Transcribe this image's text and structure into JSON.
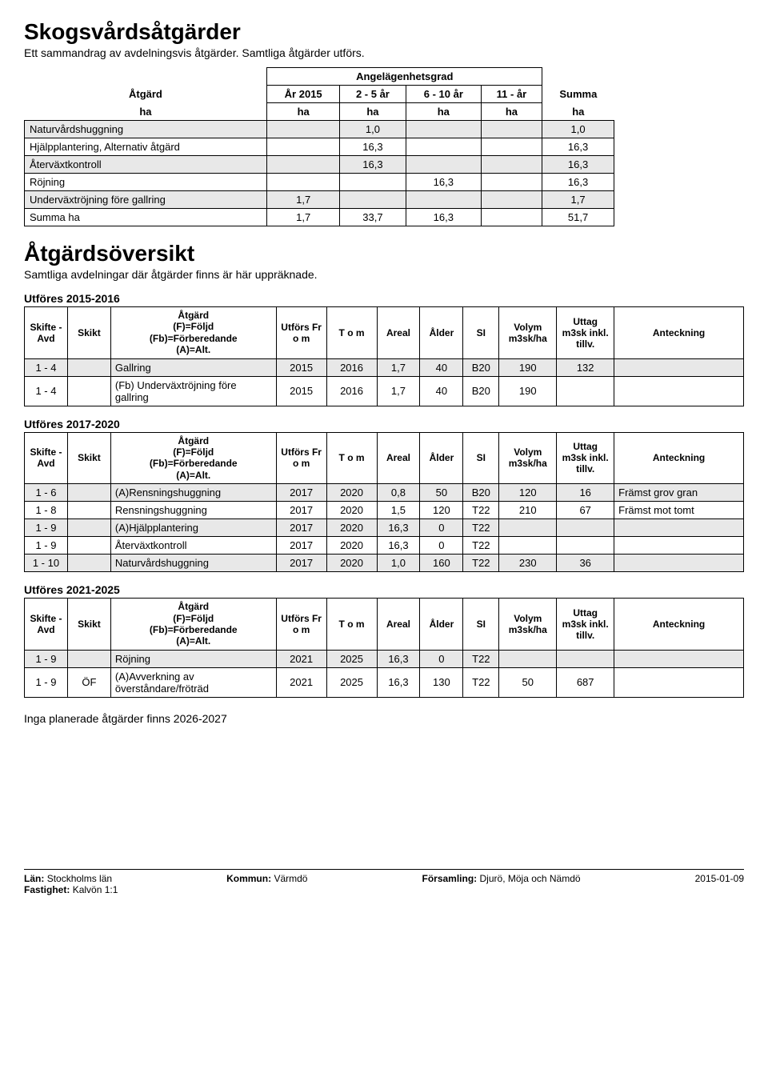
{
  "title1": "Skogsvårdsåtgärder",
  "subtitle1": "Ett sammandrag av avdelningsvis åtgärder. Samtliga åtgärder utförs.",
  "summary": {
    "col_angelagen": "Angelägenhetsgrad",
    "col_atgard": "Åtgärd",
    "col_ar2015": "År 2015",
    "col_25": "2 - 5 år",
    "col_610": "6 - 10 år",
    "col_11": "11 - år",
    "col_summa": "Summa",
    "unit": "ha",
    "rows": [
      {
        "label": "Naturvårdshuggning",
        "v1": "",
        "v2": "1,0",
        "v3": "",
        "v4": "",
        "sum": "1,0",
        "shade": true
      },
      {
        "label": "Hjälpplantering, Alternativ åtgärd",
        "v1": "",
        "v2": "16,3",
        "v3": "",
        "v4": "",
        "sum": "16,3",
        "shade": false
      },
      {
        "label": "Återväxtkontroll",
        "v1": "",
        "v2": "16,3",
        "v3": "",
        "v4": "",
        "sum": "16,3",
        "shade": true
      },
      {
        "label": "Röjning",
        "v1": "",
        "v2": "",
        "v3": "16,3",
        "v4": "",
        "sum": "16,3",
        "shade": false
      },
      {
        "label": "Underväxtröjning före gallring",
        "v1": "1,7",
        "v2": "",
        "v3": "",
        "v4": "",
        "sum": "1,7",
        "shade": true
      },
      {
        "label": "Summa ha",
        "v1": "1,7",
        "v2": "33,7",
        "v3": "16,3",
        "v4": "",
        "sum": "51,7",
        "shade": false
      }
    ]
  },
  "title2": "Åtgärdsöversikt",
  "subtitle2": "Samtliga avdelningar där åtgärder finns är här uppräknade.",
  "detailHeaders": {
    "skifte": "Skifte - Avd",
    "skikt": "Skikt",
    "atgard": "Åtgärd\n(F)=Följd\n(Fb)=Förberedande\n(A)=Alt.",
    "utfors": "Utförs Fr o m",
    "tom": "T o m",
    "areal": "Areal",
    "alder": "Ålder",
    "si": "SI",
    "volym": "Volym m3sk/ha",
    "uttag": "Uttag m3sk inkl. tillv.",
    "anteck": "Anteckning"
  },
  "sections": [
    {
      "label": "Utföres 2015-2016",
      "rows": [
        {
          "shade": true,
          "c": [
            "1 - 4",
            "",
            "Gallring",
            "2015",
            "2016",
            "1,7",
            "40",
            "B20",
            "190",
            "132",
            ""
          ]
        },
        {
          "shade": false,
          "c": [
            "1 - 4",
            "",
            "(Fb) Underväxtröjning före gallring",
            "2015",
            "2016",
            "1,7",
            "40",
            "B20",
            "190",
            "",
            ""
          ]
        }
      ]
    },
    {
      "label": "Utföres 2017-2020",
      "rows": [
        {
          "shade": true,
          "c": [
            "1 - 6",
            "",
            "(A)Rensningshuggning",
            "2017",
            "2020",
            "0,8",
            "50",
            "B20",
            "120",
            "16",
            "Främst grov gran"
          ]
        },
        {
          "shade": false,
          "c": [
            "1 - 8",
            "",
            "Rensningshuggning",
            "2017",
            "2020",
            "1,5",
            "120",
            "T22",
            "210",
            "67",
            "Främst mot tomt"
          ]
        },
        {
          "shade": true,
          "c": [
            "1 - 9",
            "",
            "(A)Hjälpplantering",
            "2017",
            "2020",
            "16,3",
            "0",
            "T22",
            "",
            "",
            ""
          ]
        },
        {
          "shade": false,
          "c": [
            "1 - 9",
            "",
            "Återväxtkontroll",
            "2017",
            "2020",
            "16,3",
            "0",
            "T22",
            "",
            "",
            ""
          ]
        },
        {
          "shade": true,
          "c": [
            "1 - 10",
            "",
            "Naturvårdshuggning",
            "2017",
            "2020",
            "1,0",
            "160",
            "T22",
            "230",
            "36",
            ""
          ]
        }
      ]
    },
    {
      "label": "Utföres 2021-2025",
      "rows": [
        {
          "shade": true,
          "c": [
            "1 - 9",
            "",
            "Röjning",
            "2021",
            "2025",
            "16,3",
            "0",
            "T22",
            "",
            "",
            ""
          ]
        },
        {
          "shade": false,
          "c": [
            "1 - 9",
            "ÖF",
            "(A)Avverkning av överståndare/fröträd",
            "2021",
            "2025",
            "16,3",
            "130",
            "T22",
            "50",
            "687",
            ""
          ]
        }
      ]
    }
  ],
  "footnote": "Inga planerade åtgärder finns 2026-2027",
  "footer": {
    "lan_label": "Län:",
    "lan": "Stockholms län",
    "kommun_label": "Kommun:",
    "kommun": "Värmdö",
    "forsamling_label": "Församling:",
    "forsamling": "Djurö, Möja och Nämdö",
    "date": "2015-01-09",
    "fastighet_label": "Fastighet:",
    "fastighet": "Kalvön 1:1"
  }
}
